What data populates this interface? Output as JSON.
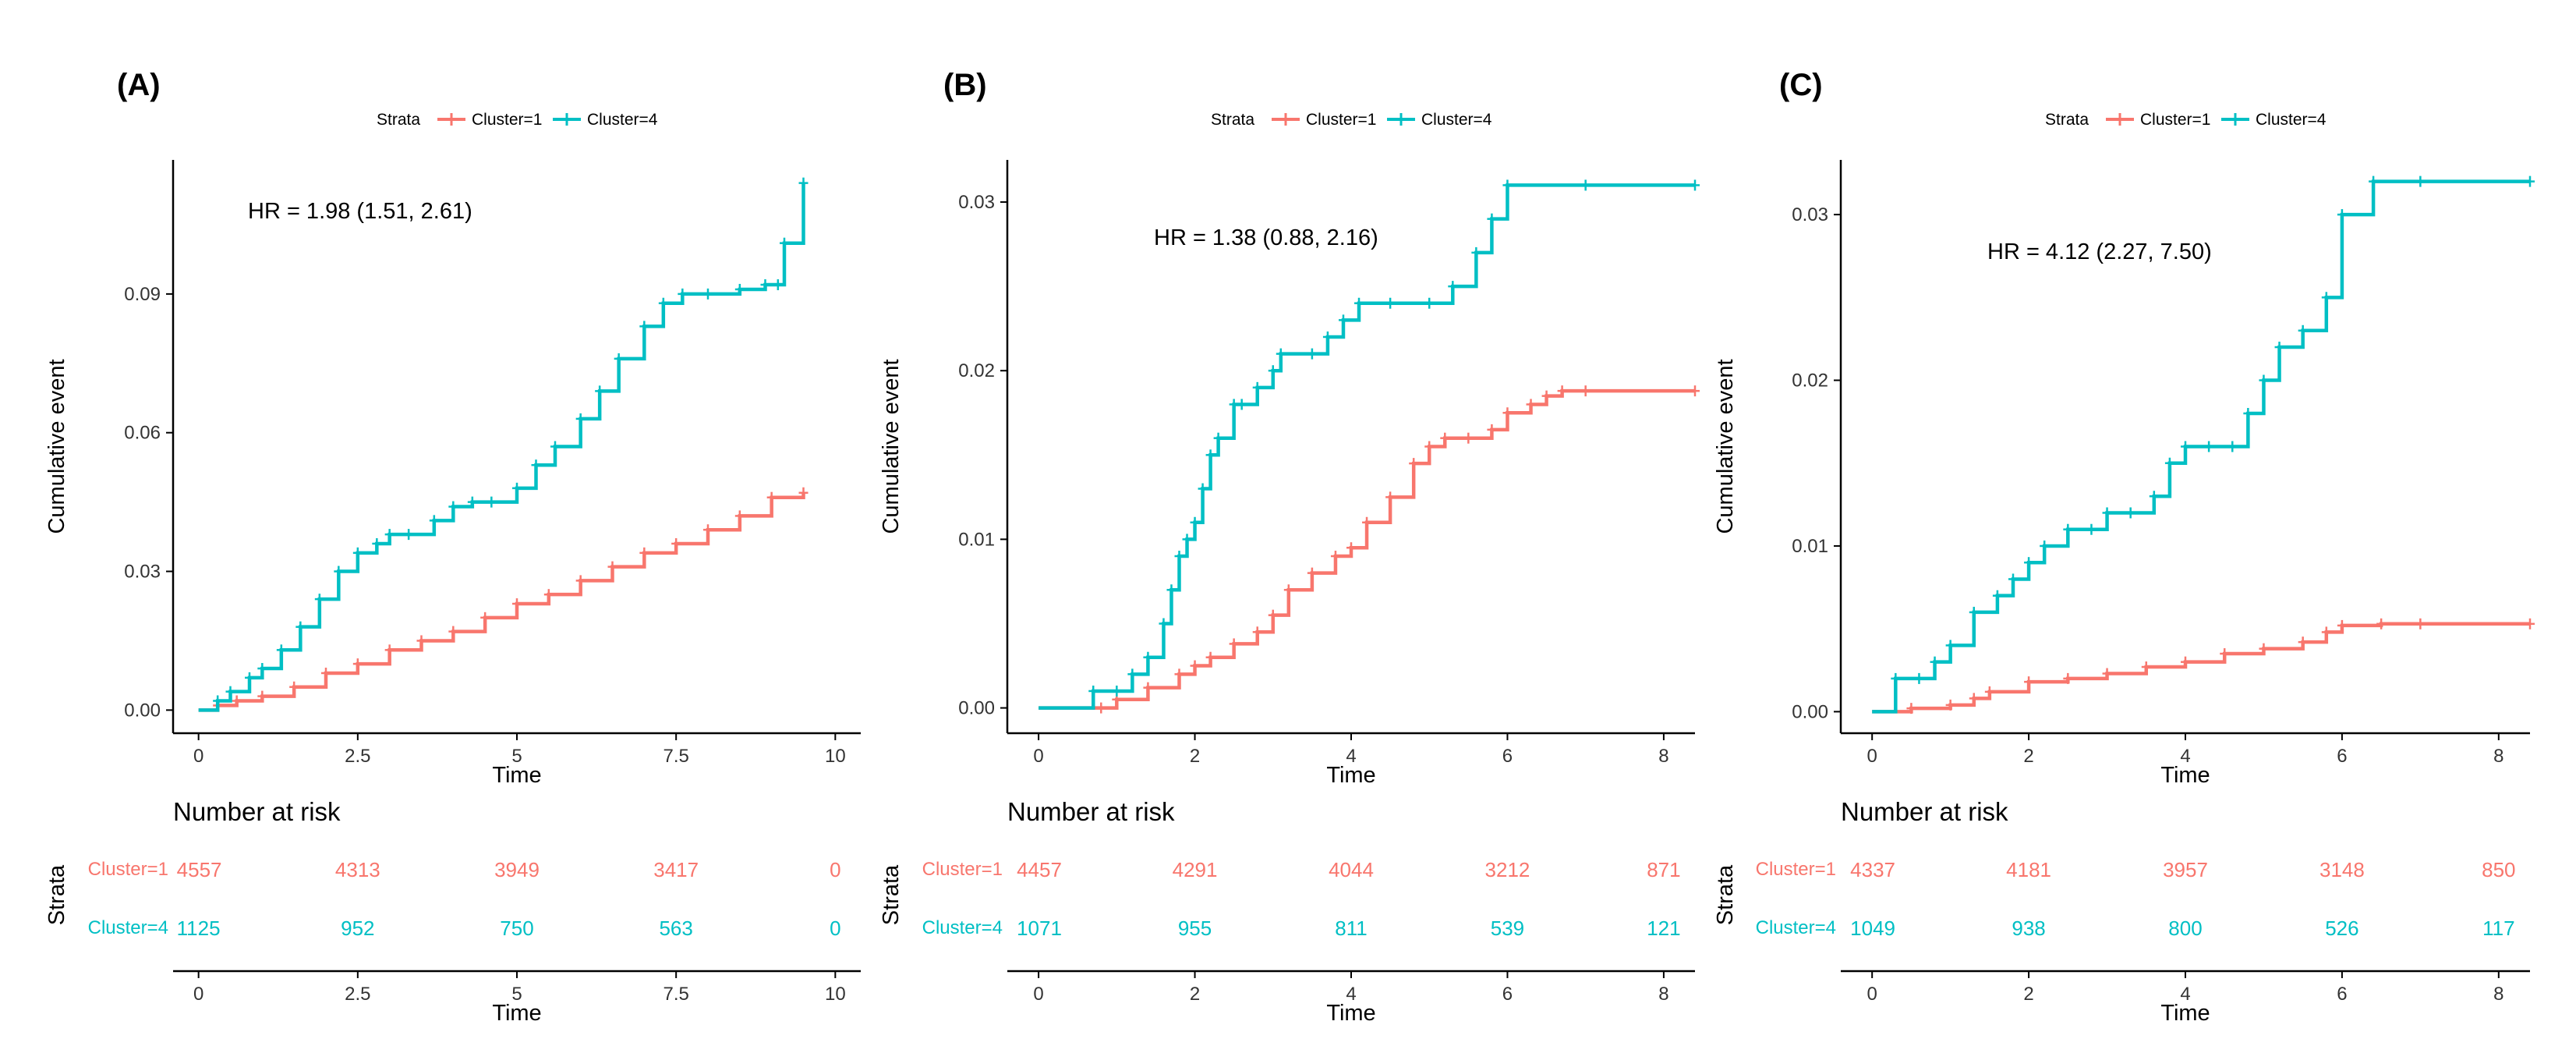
{
  "colors": {
    "cluster1": "#F8766D",
    "cluster4": "#00BFC4",
    "axis": "#000000"
  },
  "chart_data": [
    {
      "type": "line",
      "panel_label": "(A)",
      "legend": {
        "title": "Strata",
        "entries": [
          "Cluster=1",
          "Cluster=4"
        ],
        "position": "top"
      },
      "annotation": "HR = 1.98  (1.51, 2.61)",
      "xlabel": "Time",
      "ylabel": "Cumulative event",
      "xlim": [
        -0.4,
        10.4
      ],
      "ylim": [
        -0.005,
        0.119
      ],
      "xticks": [
        0,
        2.5,
        5,
        7.5,
        10
      ],
      "xtick_labels": [
        "0",
        "2.5",
        "5",
        "7.5",
        "10"
      ],
      "yticks": [
        0,
        0.03,
        0.06,
        0.09
      ],
      "ytick_labels": [
        "0.00",
        "0.03",
        "0.06",
        "0.09"
      ],
      "series": [
        {
          "name": "Cluster=1",
          "x": [
            0,
            0.3,
            0.6,
            1.0,
            1.5,
            2.0,
            2.5,
            3.0,
            3.5,
            4.0,
            4.5,
            5.0,
            5.5,
            6.0,
            6.5,
            7.0,
            7.5,
            8.0,
            8.5,
            9.0,
            9.5
          ],
          "y": [
            0,
            0.001,
            0.002,
            0.003,
            0.005,
            0.008,
            0.01,
            0.013,
            0.015,
            0.017,
            0.02,
            0.023,
            0.025,
            0.028,
            0.031,
            0.034,
            0.036,
            0.039,
            0.042,
            0.046,
            0.047
          ]
        },
        {
          "name": "Cluster=4",
          "x": [
            0,
            0.3,
            0.5,
            0.8,
            1.0,
            1.3,
            1.6,
            1.9,
            2.2,
            2.5,
            2.8,
            3.0,
            3.3,
            3.7,
            4.0,
            4.3,
            4.6,
            5.0,
            5.3,
            5.6,
            6.0,
            6.3,
            6.6,
            7.0,
            7.3,
            7.6,
            8.0,
            8.5,
            8.9,
            9.1,
            9.2,
            9.5
          ],
          "y": [
            0,
            0.002,
            0.004,
            0.007,
            0.009,
            0.013,
            0.018,
            0.024,
            0.03,
            0.034,
            0.036,
            0.038,
            0.038,
            0.041,
            0.044,
            0.045,
            0.045,
            0.048,
            0.053,
            0.057,
            0.063,
            0.069,
            0.076,
            0.083,
            0.088,
            0.09,
            0.09,
            0.091,
            0.092,
            0.092,
            0.101,
            0.114
          ]
        }
      ],
      "risk_table": {
        "title": "Number at risk",
        "ylabel": "Strata",
        "rows": [
          {
            "name": "Cluster=1",
            "values": [
              "4557",
              "4313",
              "3949",
              "3417",
              "0"
            ]
          },
          {
            "name": "Cluster=4",
            "values": [
              "1125",
              "952",
              "750",
              "563",
              "0"
            ]
          }
        ],
        "times": [
          0,
          2.5,
          5,
          7.5,
          10
        ]
      }
    },
    {
      "type": "line",
      "panel_label": "(B)",
      "legend": {
        "title": "Strata",
        "entries": [
          "Cluster=1",
          "Cluster=4"
        ],
        "position": "top"
      },
      "annotation": "HR = 1.38  (0.88, 2.16)",
      "xlabel": "Time",
      "ylabel": "Cumulative event",
      "xlim": [
        -0.4,
        8.4
      ],
      "ylim": [
        -0.0015,
        0.0325
      ],
      "xticks": [
        0,
        2,
        4,
        6,
        8
      ],
      "xtick_labels": [
        "0",
        "2",
        "4",
        "6",
        "8"
      ],
      "yticks": [
        0,
        0.01,
        0.02,
        0.03
      ],
      "ytick_labels": [
        "0.00",
        "0.01",
        "0.02",
        "0.03"
      ],
      "series": [
        {
          "name": "Cluster=1",
          "x": [
            0,
            0.8,
            1.0,
            1.4,
            1.8,
            2.0,
            2.2,
            2.5,
            2.8,
            3.0,
            3.2,
            3.5,
            3.8,
            4.0,
            4.2,
            4.5,
            4.8,
            5.0,
            5.2,
            5.5,
            5.8,
            6.0,
            6.3,
            6.5,
            6.7,
            7.0,
            8.4
          ],
          "y": [
            0,
            0,
            0.0005,
            0.0012,
            0.002,
            0.0025,
            0.003,
            0.0038,
            0.0045,
            0.0055,
            0.007,
            0.008,
            0.009,
            0.0095,
            0.011,
            0.0125,
            0.0145,
            0.0155,
            0.016,
            0.016,
            0.0165,
            0.0175,
            0.018,
            0.0185,
            0.0188,
            0.0188,
            0.0188
          ]
        },
        {
          "name": "Cluster=4",
          "x": [
            0,
            0.7,
            1.0,
            1.2,
            1.4,
            1.6,
            1.7,
            1.8,
            1.9,
            2.0,
            2.1,
            2.2,
            2.3,
            2.5,
            2.6,
            2.8,
            3.0,
            3.1,
            3.5,
            3.7,
            3.9,
            4.1,
            4.5,
            5.0,
            5.3,
            5.6,
            5.8,
            6.0,
            7.0,
            8.4
          ],
          "y": [
            0,
            0.001,
            0.001,
            0.002,
            0.003,
            0.005,
            0.007,
            0.009,
            0.01,
            0.011,
            0.013,
            0.015,
            0.016,
            0.018,
            0.018,
            0.019,
            0.02,
            0.021,
            0.021,
            0.022,
            0.023,
            0.024,
            0.024,
            0.024,
            0.025,
            0.027,
            0.029,
            0.031,
            0.031,
            0.031
          ]
        }
      ],
      "risk_table": {
        "title": "Number at risk",
        "ylabel": "Strata",
        "rows": [
          {
            "name": "Cluster=1",
            "values": [
              "4457",
              "4291",
              "4044",
              "3212",
              "871"
            ]
          },
          {
            "name": "Cluster=4",
            "values": [
              "1071",
              "955",
              "811",
              "539",
              "121"
            ]
          }
        ],
        "times": [
          0,
          2,
          4,
          6,
          8
        ]
      }
    },
    {
      "type": "line",
      "panel_label": "(C)",
      "legend": {
        "title": "Strata",
        "entries": [
          "Cluster=1",
          "Cluster=4"
        ],
        "position": "top"
      },
      "annotation": "HR = 4.12  (2.27, 7.50)",
      "xlabel": "Time",
      "ylabel": "Cumulative event",
      "xlim": [
        -0.4,
        8.4
      ],
      "ylim": [
        -0.0013,
        0.0333
      ],
      "xticks": [
        0,
        2,
        4,
        6,
        8
      ],
      "xtick_labels": [
        "0",
        "2",
        "4",
        "6",
        "8"
      ],
      "yticks": [
        0,
        0.01,
        0.02,
        0.03
      ],
      "ytick_labels": [
        "0.00",
        "0.01",
        "0.02",
        "0.03"
      ],
      "series": [
        {
          "name": "Cluster=1",
          "x": [
            0,
            0.5,
            1.0,
            1.3,
            1.5,
            2.0,
            2.5,
            3.0,
            3.5,
            4.0,
            4.5,
            5.0,
            5.5,
            5.8,
            6.0,
            6.5,
            7.0,
            8.4
          ],
          "y": [
            0,
            0.0002,
            0.0004,
            0.0008,
            0.0012,
            0.0018,
            0.002,
            0.0023,
            0.0027,
            0.003,
            0.0035,
            0.0038,
            0.0042,
            0.0048,
            0.0052,
            0.0053,
            0.0053,
            0.0053
          ]
        },
        {
          "name": "Cluster=4",
          "x": [
            0,
            0.3,
            0.6,
            0.8,
            1.0,
            1.3,
            1.6,
            1.8,
            2.0,
            2.2,
            2.5,
            2.8,
            3.0,
            3.3,
            3.6,
            3.8,
            4.0,
            4.3,
            4.6,
            4.8,
            5.0,
            5.2,
            5.5,
            5.8,
            6.0,
            6.4,
            7.0,
            8.4
          ],
          "y": [
            0,
            0.002,
            0.002,
            0.003,
            0.004,
            0.006,
            0.007,
            0.008,
            0.009,
            0.01,
            0.011,
            0.011,
            0.012,
            0.012,
            0.013,
            0.015,
            0.016,
            0.016,
            0.016,
            0.018,
            0.02,
            0.022,
            0.023,
            0.025,
            0.03,
            0.032,
            0.032,
            0.032
          ]
        }
      ],
      "risk_table": {
        "title": "Number at risk",
        "ylabel": "Strata",
        "rows": [
          {
            "name": "Cluster=1",
            "values": [
              "4337",
              "4181",
              "3957",
              "3148",
              "850"
            ]
          },
          {
            "name": "Cluster=4",
            "values": [
              "1049",
              "938",
              "800",
              "526",
              "117"
            ]
          }
        ],
        "times": [
          0,
          2,
          4,
          6,
          8
        ]
      }
    }
  ]
}
